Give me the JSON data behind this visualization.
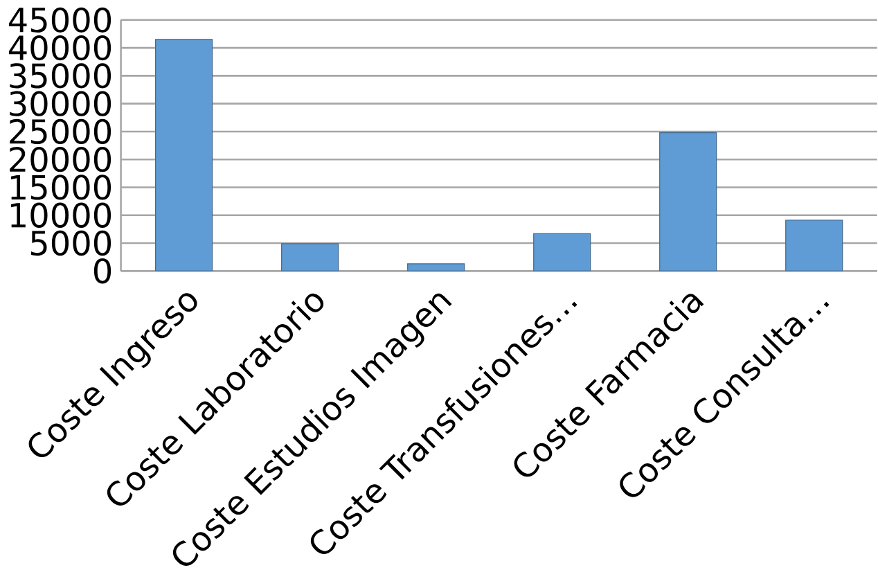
{
  "chart_data": {
    "type": "bar",
    "categories": [
      "Coste Ingreso",
      "Coste Laboratorio",
      "Coste Estudios Imagen",
      "Coste Transfusiones…",
      "Coste Farmacia",
      "Coste Consulta…"
    ],
    "values": [
      41500,
      4900,
      1300,
      6700,
      24800,
      9100
    ],
    "color": "#5f9bd4",
    "ylim": [
      0,
      45000
    ],
    "yticks": [
      0,
      5000,
      10000,
      15000,
      20000,
      25000,
      30000,
      35000,
      40000,
      45000
    ],
    "grid": "y"
  }
}
